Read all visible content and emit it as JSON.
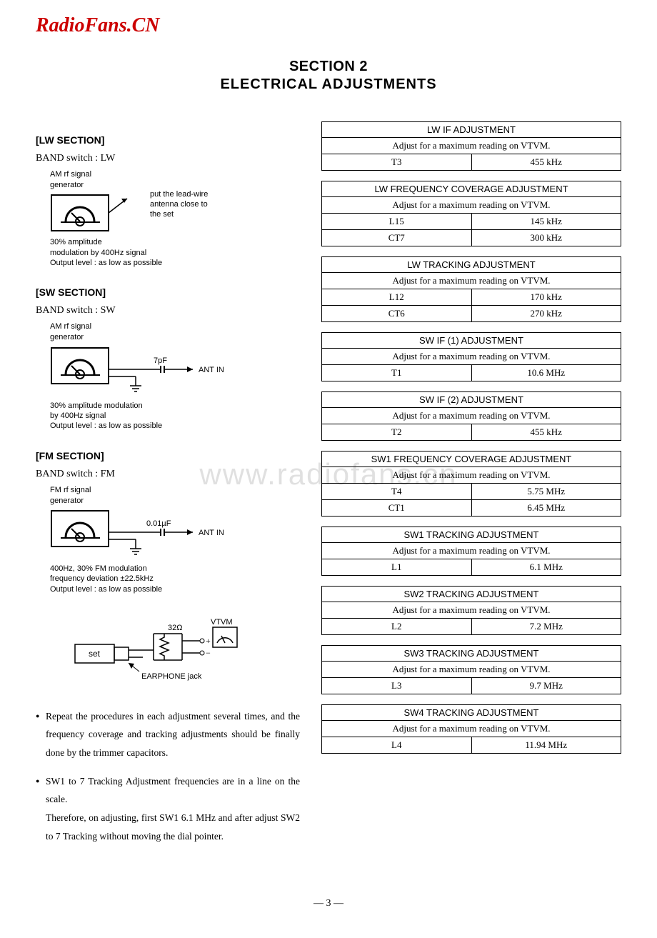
{
  "site_logo": "RadioFans.CN",
  "watermark": "www.radiofans.cn",
  "title": "SECTION 2",
  "subtitle": "ELECTRICAL ADJUSTMENTS",
  "page_number": "— 3 —",
  "sections": {
    "lw": {
      "header": "[LW SECTION]",
      "band": "BAND switch : LW",
      "gen1": "AM rf signal",
      "gen2": "generator",
      "side_note": "put the lead-wire\nantenna close to\nthe set",
      "note1": "30% amplitude",
      "note2": "modulation by 400Hz signal",
      "note3": "Output level : as low as possible"
    },
    "sw": {
      "header": "[SW SECTION]",
      "band": "BAND switch : SW",
      "gen1": "AM rf signal",
      "gen2": "generator",
      "cap": "7pF",
      "ant": "ANT IN",
      "note1": "30% amplitude modulation",
      "note2": "by 400Hz signal",
      "note3": "Output level : as low as possible"
    },
    "fm": {
      "header": "[FM SECTION]",
      "band": "BAND switch : FM",
      "gen1": "FM rf signal",
      "gen2": "generator",
      "cap": "0.01µF",
      "ant": "ANT IN",
      "note1": "400Hz, 30% FM modulation",
      "note2": "frequency deviation ±22.5kHz",
      "note3": "Output level : as low as possible"
    },
    "vtvm": {
      "vtvm": "VTVM",
      "ohm": "32Ω",
      "set": "set",
      "jack": "EARPHONE jack"
    }
  },
  "bullets": [
    "Repeat the procedures in each adjustment several times, and the frequency coverage and tracking adjustments should be finally done by the trimmer capacitors.",
    "SW1 to 7 Tracking Adjustment frequencies are in a line on the scale.\nTherefore, on adjusting, first SW1 6.1 MHz and after adjust SW2 to 7 Tracking without moving the dial pointer."
  ],
  "tables": [
    {
      "title": "LW IF ADJUSTMENT",
      "instr": "Adjust for a maximum reading on VTVM.",
      "rows": [
        [
          "T3",
          "455 kHz"
        ]
      ]
    },
    {
      "title": "LW FREQUENCY COVERAGE ADJUSTMENT",
      "instr": "Adjust for a maximum reading on VTVM.",
      "rows": [
        [
          "L15",
          "145 kHz"
        ],
        [
          "CT7",
          "300 kHz"
        ]
      ]
    },
    {
      "title": "LW TRACKING ADJUSTMENT",
      "instr": "Adjust for a maximum reading on VTVM.",
      "rows": [
        [
          "L12",
          "170 kHz"
        ],
        [
          "CT6",
          "270 kHz"
        ]
      ]
    },
    {
      "title": "SW IF (1) ADJUSTMENT",
      "instr": "Adjust for a maximum reading on VTVM.",
      "rows": [
        [
          "T1",
          "10.6 MHz"
        ]
      ]
    },
    {
      "title": "SW IF (2) ADJUSTMENT",
      "instr": "Adjust for a maximum reading on VTVM.",
      "rows": [
        [
          "T2",
          "455 kHz"
        ]
      ]
    },
    {
      "title": "SW1 FREQUENCY COVERAGE ADJUSTMENT",
      "instr": "Adjust for a maximum reading on VTVM.",
      "rows": [
        [
          "T4",
          "5.75 MHz"
        ],
        [
          "CT1",
          "6.45 MHz"
        ]
      ]
    },
    {
      "title": "SW1 TRACKING ADJUSTMENT",
      "instr": "Adjust for a maximum reading on VTVM.",
      "rows": [
        [
          "L1",
          "6.1 MHz"
        ]
      ]
    },
    {
      "title": "SW2 TRACKING ADJUSTMENT",
      "instr": "Adjust for a maximum reading on VTVM.",
      "rows": [
        [
          "L2",
          "7.2 MHz"
        ]
      ]
    },
    {
      "title": "SW3 TRACKING ADJUSTMENT",
      "instr": "Adjust for a maximum reading on VTVM.",
      "rows": [
        [
          "L3",
          "9.7 MHz"
        ]
      ]
    },
    {
      "title": "SW4 TRACKING ADJUSTMENT",
      "instr": "Adjust for a maximum reading on VTVM.",
      "rows": [
        [
          "L4",
          "11.94 MHz"
        ]
      ]
    }
  ]
}
